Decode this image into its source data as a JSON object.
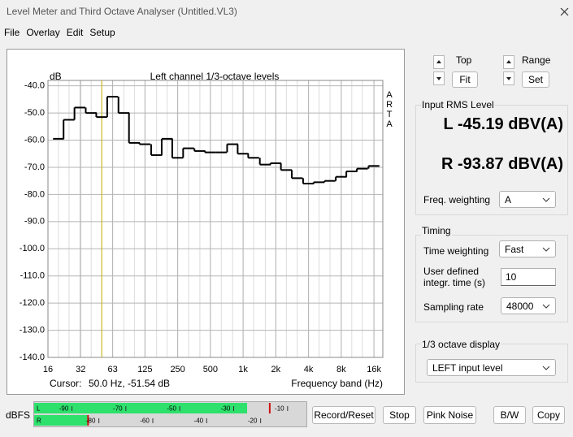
{
  "window": {
    "title": "Level Meter and Third Octave Analyser (Untitled.VL3)"
  },
  "menu": [
    "File",
    "Overlay",
    "Edit",
    "Setup"
  ],
  "chart_data": {
    "type": "step",
    "title": "Left channel 1/3-octave levels",
    "y_label": "dB",
    "side_label": "ARTA",
    "x_label": "Frequency band (Hz)",
    "cursor_label": "Cursor:",
    "cursor_text": "50.0 Hz, -51.54 dB",
    "cursor_x": 50,
    "x": [
      20,
      25,
      31.5,
      40,
      50,
      63,
      80,
      100,
      125,
      160,
      200,
      250,
      315,
      400,
      500,
      630,
      800,
      1000,
      1250,
      1600,
      2000,
      2500,
      3150,
      4000,
      5000,
      6300,
      8000,
      10000,
      12500,
      16000
    ],
    "values": [
      -59.5,
      -52.5,
      -48,
      -50,
      -51.5,
      -44,
      -50,
      -61,
      -61.5,
      -65.5,
      -59.5,
      -66.5,
      -63,
      -64,
      -64.5,
      -64.5,
      -61.5,
      -65,
      -66.5,
      -69,
      -68.5,
      -71,
      -74,
      -76,
      -75.5,
      -75,
      -73.5,
      -71.5,
      -70.5,
      -69.5
    ],
    "color": "#000000",
    "cursor_color": "#c8b400",
    "log_x": true,
    "grid": true,
    "xlim": [
      16,
      19300
    ],
    "xticks": [
      16,
      32,
      63,
      125,
      250,
      500,
      {
        "value": 1000,
        "label": "1k"
      },
      {
        "value": 2000,
        "label": "2k"
      },
      {
        "value": 4000,
        "label": "4k"
      },
      {
        "value": 8000,
        "label": "8k"
      },
      {
        "value": 16000,
        "label": "16k"
      }
    ],
    "ylim": [
      -140,
      -38
    ],
    "yticks": [
      {
        "value": -140,
        "label": "-140.0"
      },
      {
        "value": -130,
        "label": "-130.0"
      },
      {
        "value": -120,
        "label": "-120.0"
      },
      {
        "value": -110,
        "label": "-110.0"
      },
      {
        "value": -100,
        "label": "-100.0"
      },
      {
        "value": -90,
        "label": "-90.0"
      },
      {
        "value": -80,
        "label": "-80.0"
      },
      {
        "value": -70,
        "label": "-70.0"
      },
      {
        "value": -60,
        "label": "-60.0"
      },
      {
        "value": -50,
        "label": "-50.0"
      },
      {
        "value": -40,
        "label": "-40.0"
      }
    ]
  },
  "controls": {
    "top": {
      "label": "Top",
      "button": "Fit"
    },
    "range": {
      "label": "Range",
      "button": "Set"
    },
    "input_rms": {
      "title": "Input RMS Level",
      "left": "L -45.19 dBV(A)",
      "right": "R -93.87 dBV(A)",
      "freq_weighting": {
        "label": "Freq. weighting",
        "value": "A"
      }
    },
    "timing": {
      "title": "Timing",
      "time_weighting": {
        "label": "Time weighting",
        "value": "Fast"
      },
      "integration_time": {
        "label": "User defined integr. time (s)",
        "value": "10"
      },
      "sampling_rate": {
        "label": "Sampling rate",
        "value": "48000"
      }
    },
    "octave_display": {
      "title": "1/3 octave display",
      "value": "LEFT input level"
    }
  },
  "meter": {
    "label": "dBFS",
    "lim": [
      -101,
      0
    ],
    "level_color": "#2ee06c",
    "peak_color": "#d01010",
    "channels": [
      {
        "name": "L",
        "level": -22,
        "peak": -13.6,
        "ticks": [
          -90,
          -70,
          -50,
          -30,
          -10
        ]
      },
      {
        "name": "R",
        "level": -81,
        "peak": -81,
        "ticks": [
          -80,
          -60,
          -40,
          -20
        ]
      }
    ]
  },
  "buttons": [
    "Record/Reset",
    "Stop",
    "Pink Noise",
    "B/W",
    "Copy"
  ]
}
